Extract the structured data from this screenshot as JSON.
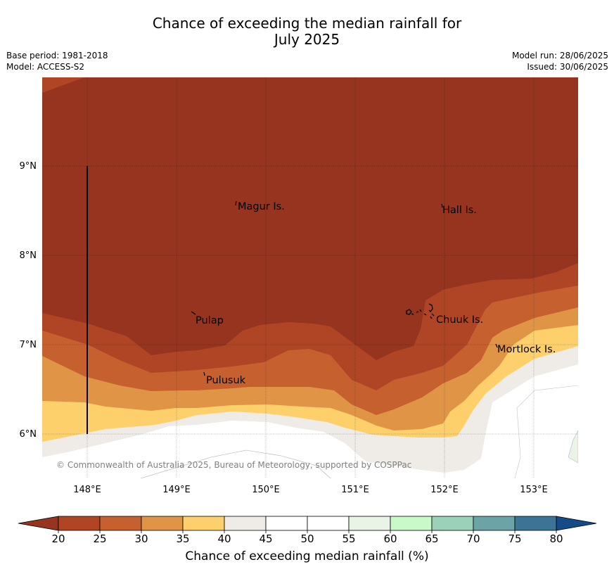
{
  "title": {
    "line1": "Chance of exceeding the median rainfall for",
    "line2": "July 2025"
  },
  "meta": {
    "base_period": "Base period: 1981-2018",
    "model": "Model: ACCESS-S2",
    "model_run": "Model run: 28/06/2025",
    "issued": "Issued: 30/06/2025"
  },
  "map": {
    "lat_ticks": [
      "9°N",
      "8°N",
      "7°N",
      "6°N"
    ],
    "lon_ticks": [
      "148°E",
      "149°E",
      "150°E",
      "151°E",
      "152°E",
      "153°E"
    ],
    "places": [
      "Magur Is.",
      "Hall Is.",
      "Pulap",
      "Chuuk Is.",
      "Mortlock Is.",
      "Pulusuk"
    ],
    "copyright": "© Commonwealth of Australia 2025, Bureau of Meteorology, supported by COSPPac"
  },
  "colorbar": {
    "label": "Chance of exceeding median rainfall (%)",
    "ticks": [
      "20",
      "25",
      "30",
      "35",
      "40",
      "45",
      "50",
      "55",
      "60",
      "65",
      "70",
      "75",
      "80"
    ],
    "colors": [
      "#b04525",
      "#c6612f",
      "#df9446",
      "#fdd06c",
      "#efebe6",
      "#ffffff",
      "#ffffff",
      "#e9f4e6",
      "#c9f8c9",
      "#9bd1b8",
      "#6ba3a7",
      "#3d7394"
    ],
    "under_color": "#963420",
    "over_color": "#134c88"
  },
  "colors": {
    "band_lt20": "#963420",
    "band_20_25": "#b04525",
    "band_25_30": "#c6612f",
    "band_30_35": "#df9446",
    "band_35_40": "#fdd06c",
    "band_40_45": "#efebe6",
    "band_45_55": "#ffffff",
    "band_55_60": "#e9f4e6"
  }
}
